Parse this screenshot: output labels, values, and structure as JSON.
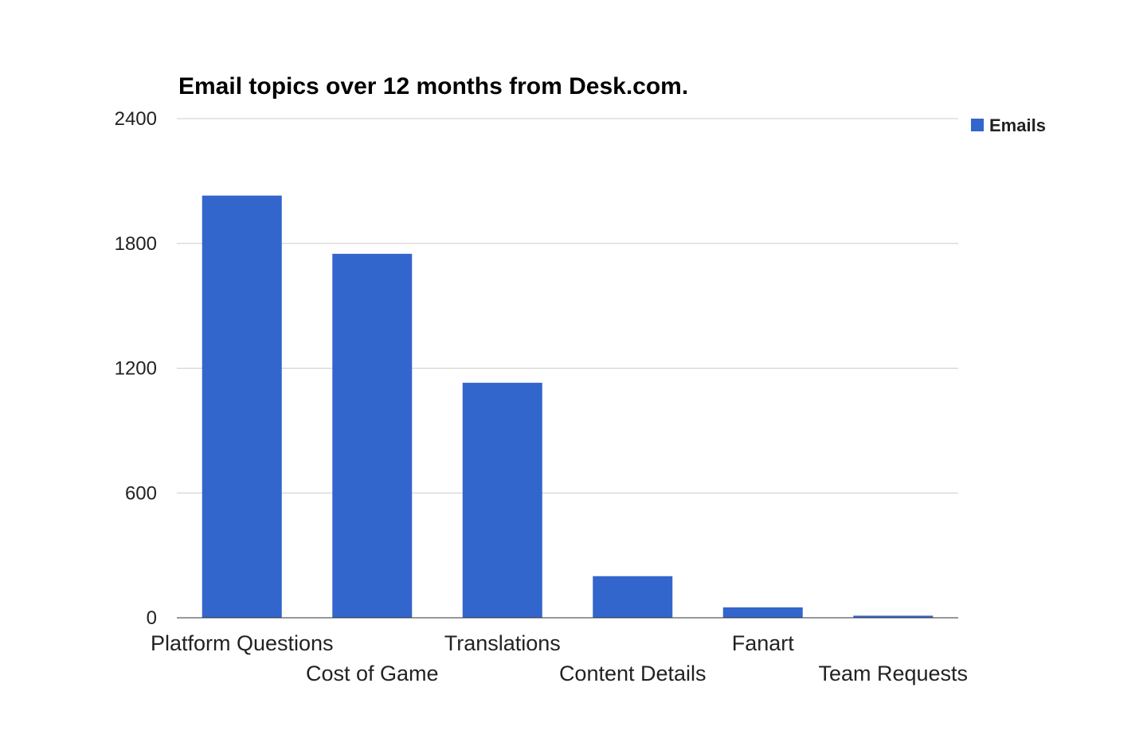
{
  "chart_data": {
    "type": "bar",
    "title": "Email topics over 12 months from Desk.com.",
    "categories": [
      "Platform Questions",
      "Cost of Game",
      "Translations",
      "Content Details",
      "Fanart",
      "Team Requests"
    ],
    "series": [
      {
        "name": "Emails",
        "color": "#3366cc",
        "values": [
          2030,
          1750,
          1130,
          200,
          50,
          10
        ]
      }
    ],
    "ylim": [
      0,
      2400
    ],
    "yticks": [
      "0",
      "600",
      "1200",
      "1800",
      "2400"
    ],
    "xlabel": "",
    "ylabel": "",
    "grid": true,
    "legend_position": "top-right"
  }
}
